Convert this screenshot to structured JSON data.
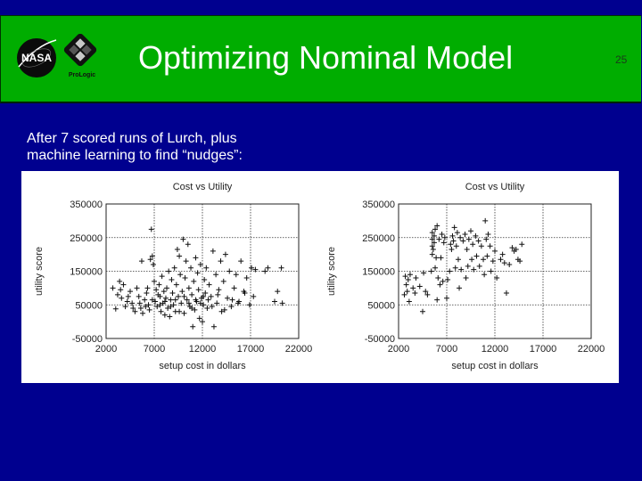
{
  "slide": {
    "title": "Optimizing Nominal Model",
    "number": "25",
    "logos": [
      "NASA",
      "ProLogic"
    ],
    "body_lines": [
      "After 7 scored runs of Lurch, plus",
      "machine learning to find “nudges”:"
    ],
    "colors": {
      "background": "#00008f",
      "title_bar": "#00ad00",
      "title_text": "#ffffff",
      "panel": "#ffffff"
    }
  },
  "chart_data": [
    {
      "type": "scatter",
      "title": "Cost vs Utility",
      "xlabel": "setup cost in dollars",
      "ylabel": "utility score",
      "xlim": [
        2000,
        22000
      ],
      "ylim": [
        -50000,
        350000
      ],
      "xticks": [
        2000,
        7000,
        12000,
        17000,
        22000
      ],
      "yticks": [
        -50000,
        50000,
        150000,
        250000,
        350000
      ],
      "grid": true,
      "marker": "+",
      "points": [
        [
          2700,
          100000
        ],
        [
          3000,
          38000
        ],
        [
          3200,
          80000
        ],
        [
          3400,
          120000
        ],
        [
          3600,
          70000
        ],
        [
          3800,
          110000
        ],
        [
          4000,
          45000
        ],
        [
          4200,
          60000
        ],
        [
          4500,
          90000
        ],
        [
          4700,
          55000
        ],
        [
          5000,
          30000
        ],
        [
          5200,
          100000
        ],
        [
          5400,
          75000
        ],
        [
          5600,
          40000
        ],
        [
          5700,
          180000
        ],
        [
          5800,
          25000
        ],
        [
          6000,
          65000
        ],
        [
          6200,
          85000
        ],
        [
          6400,
          50000
        ],
        [
          6500,
          35000
        ],
        [
          6600,
          185000
        ],
        [
          6700,
          275000
        ],
        [
          6800,
          195000
        ],
        [
          6900,
          170000
        ],
        [
          7000,
          120000
        ],
        [
          7100,
          60000
        ],
        [
          7200,
          95000
        ],
        [
          7300,
          45000
        ],
        [
          7500,
          110000
        ],
        [
          7600,
          75000
        ],
        [
          7700,
          30000
        ],
        [
          7800,
          135000
        ],
        [
          7900,
          55000
        ],
        [
          8000,
          90000
        ],
        [
          8100,
          20000
        ],
        [
          8200,
          70000
        ],
        [
          8300,
          100000
        ],
        [
          8400,
          40000
        ],
        [
          8500,
          150000
        ],
        [
          8600,
          15000
        ],
        [
          8700,
          65000
        ],
        [
          8800,
          125000
        ],
        [
          8900,
          85000
        ],
        [
          9000,
          50000
        ],
        [
          9100,
          160000
        ],
        [
          9200,
          30000
        ],
        [
          9300,
          110000
        ],
        [
          9400,
          215000
        ],
        [
          9500,
          75000
        ],
        [
          9600,
          195000
        ],
        [
          9700,
          140000
        ],
        [
          9800,
          55000
        ],
        [
          9900,
          90000
        ],
        [
          10000,
          245000
        ],
        [
          10100,
          25000
        ],
        [
          10200,
          130000
        ],
        [
          10300,
          180000
        ],
        [
          10400,
          65000
        ],
        [
          10500,
          230000
        ],
        [
          10600,
          100000
        ],
        [
          10700,
          45000
        ],
        [
          10800,
          160000
        ],
        [
          10900,
          80000
        ],
        [
          11000,
          -15000
        ],
        [
          11100,
          120000
        ],
        [
          11200,
          35000
        ],
        [
          11300,
          190000
        ],
        [
          11400,
          60000
        ],
        [
          11500,
          145000
        ],
        [
          11600,
          95000
        ],
        [
          11700,
          10000
        ],
        [
          11800,
          170000
        ],
        [
          11900,
          70000
        ],
        [
          12000,
          0
        ],
        [
          12100,
          50000
        ],
        [
          12200,
          125000
        ],
        [
          12300,
          85000
        ],
        [
          12400,
          160000
        ],
        [
          12500,
          40000
        ],
        [
          12700,
          110000
        ],
        [
          12900,
          75000
        ],
        [
          13100,
          210000
        ],
        [
          13200,
          -15000
        ],
        [
          13400,
          140000
        ],
        [
          13500,
          55000
        ],
        [
          13700,
          95000
        ],
        [
          13900,
          180000
        ],
        [
          14000,
          30000
        ],
        [
          14200,
          120000
        ],
        [
          14400,
          200000
        ],
        [
          14600,
          70000
        ],
        [
          14800,
          150000
        ],
        [
          15000,
          45000
        ],
        [
          15300,
          100000
        ],
        [
          15500,
          140000
        ],
        [
          15800,
          60000
        ],
        [
          16000,
          180000
        ],
        [
          16300,
          90000
        ],
        [
          16600,
          130000
        ],
        [
          16900,
          50000
        ],
        [
          17100,
          160000
        ],
        [
          17300,
          75000
        ],
        [
          17500,
          155000
        ],
        [
          18500,
          150000
        ],
        [
          18800,
          160000
        ],
        [
          19500,
          60000
        ],
        [
          19800,
          90000
        ],
        [
          20200,
          160000
        ],
        [
          20300,
          55000
        ],
        [
          3500,
          95000
        ],
        [
          4300,
          75000
        ],
        [
          4800,
          40000
        ],
        [
          5500,
          55000
        ],
        [
          6100,
          45000
        ],
        [
          6300,
          100000
        ],
        [
          6800,
          65000
        ],
        [
          7400,
          80000
        ],
        [
          7600,
          50000
        ],
        [
          8100,
          60000
        ],
        [
          8700,
          45000
        ],
        [
          9200,
          65000
        ],
        [
          9600,
          30000
        ],
        [
          10100,
          75000
        ],
        [
          10600,
          55000
        ],
        [
          10900,
          40000
        ],
        [
          11300,
          65000
        ],
        [
          11800,
          55000
        ],
        [
          12100,
          75000
        ],
        [
          12600,
          65000
        ],
        [
          13000,
          45000
        ],
        [
          13600,
          80000
        ],
        [
          14300,
          35000
        ],
        [
          15100,
          65000
        ],
        [
          15700,
          55000
        ],
        [
          16400,
          85000
        ]
      ]
    },
    {
      "type": "scatter",
      "title": "Cost vs Utility",
      "xlabel": "setup cost in dollars",
      "ylabel": "utility score",
      "xlim": [
        2000,
        22000
      ],
      "ylim": [
        -50000,
        350000
      ],
      "xticks": [
        2000,
        7000,
        12000,
        17000,
        22000
      ],
      "yticks": [
        -50000,
        50000,
        150000,
        250000,
        350000
      ],
      "grid": true,
      "marker": "+",
      "points": [
        [
          2600,
          80000
        ],
        [
          2700,
          135000
        ],
        [
          2800,
          110000
        ],
        [
          2900,
          90000
        ],
        [
          3000,
          125000
        ],
        [
          3100,
          60000
        ],
        [
          3200,
          140000
        ],
        [
          3500,
          100000
        ],
        [
          3700,
          85000
        ],
        [
          3800,
          130000
        ],
        [
          4200,
          105000
        ],
        [
          4500,
          30000
        ],
        [
          4600,
          145000
        ],
        [
          4800,
          90000
        ],
        [
          5000,
          80000
        ],
        [
          5400,
          150000
        ],
        [
          5500,
          200000
        ],
        [
          5500,
          225000
        ],
        [
          5500,
          245000
        ],
        [
          5500,
          265000
        ],
        [
          5600,
          215000
        ],
        [
          5700,
          235000
        ],
        [
          5700,
          255000
        ],
        [
          5800,
          275000
        ],
        [
          5800,
          160000
        ],
        [
          5900,
          190000
        ],
        [
          6000,
          65000
        ],
        [
          6000,
          285000
        ],
        [
          6100,
          130000
        ],
        [
          6200,
          245000
        ],
        [
          6300,
          110000
        ],
        [
          6400,
          190000
        ],
        [
          6500,
          260000
        ],
        [
          6600,
          120000
        ],
        [
          6700,
          235000
        ],
        [
          6800,
          250000
        ],
        [
          7000,
          70000
        ],
        [
          7100,
          125000
        ],
        [
          7300,
          150000
        ],
        [
          7400,
          230000
        ],
        [
          7500,
          215000
        ],
        [
          7600,
          255000
        ],
        [
          7700,
          240000
        ],
        [
          7800,
          280000
        ],
        [
          7900,
          160000
        ],
        [
          8000,
          225000
        ],
        [
          8100,
          265000
        ],
        [
          8200,
          185000
        ],
        [
          8300,
          100000
        ],
        [
          8400,
          250000
        ],
        [
          8500,
          155000
        ],
        [
          8700,
          240000
        ],
        [
          8900,
          260000
        ],
        [
          9000,
          130000
        ],
        [
          9100,
          215000
        ],
        [
          9200,
          165000
        ],
        [
          9300,
          245000
        ],
        [
          9500,
          270000
        ],
        [
          9600,
          185000
        ],
        [
          9700,
          230000
        ],
        [
          9800,
          155000
        ],
        [
          10000,
          255000
        ],
        [
          10100,
          195000
        ],
        [
          10300,
          240000
        ],
        [
          10400,
          165000
        ],
        [
          10600,
          225000
        ],
        [
          10800,
          185000
        ],
        [
          10900,
          140000
        ],
        [
          11000,
          300000
        ],
        [
          11100,
          245000
        ],
        [
          11200,
          195000
        ],
        [
          11300,
          260000
        ],
        [
          11500,
          225000
        ],
        [
          11600,
          150000
        ],
        [
          11800,
          180000
        ],
        [
          12000,
          210000
        ],
        [
          12200,
          130000
        ],
        [
          12600,
          185000
        ],
        [
          12800,
          200000
        ],
        [
          13000,
          175000
        ],
        [
          13200,
          85000
        ],
        [
          13500,
          170000
        ],
        [
          13800,
          220000
        ],
        [
          14000,
          210000
        ],
        [
          14200,
          215000
        ],
        [
          14400,
          185000
        ],
        [
          14600,
          180000
        ],
        [
          14800,
          230000
        ]
      ]
    }
  ]
}
